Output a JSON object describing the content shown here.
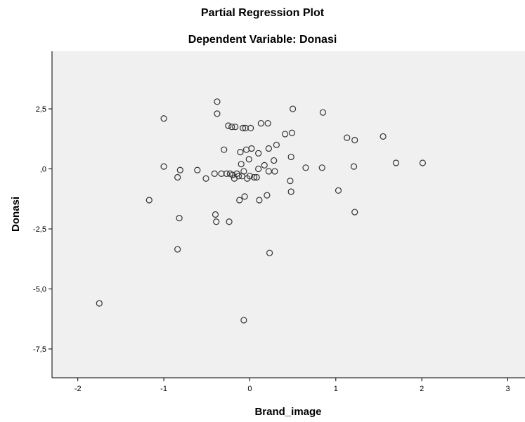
{
  "chart_data": {
    "type": "scatter",
    "title": "Partial Regression Plot",
    "subtitle": "Dependent Variable: Donasi",
    "xlabel": "Brand_image",
    "ylabel": "Donasi",
    "xlim": [
      -2.3,
      3.2
    ],
    "ylim": [
      -8.7,
      4.9
    ],
    "xticks": [
      -2,
      -1,
      0,
      1,
      2,
      3
    ],
    "yticks": [
      2.5,
      0,
      -2.5,
      -5.0,
      -7.5
    ],
    "xtick_labels": [
      "-2",
      "-1",
      "0",
      "1",
      "2",
      "3"
    ],
    "ytick_labels": [
      "2,5",
      ",0",
      "-2,5",
      "-5,0",
      "-7,5"
    ],
    "grid": false,
    "colors": {
      "plot_background": "#f0f0f0",
      "marker_edge": "#333333"
    },
    "x": [
      -1.75,
      -1.17,
      -1.0,
      -1.0,
      -0.84,
      -0.84,
      -0.82,
      -0.81,
      -0.61,
      -0.51,
      -0.41,
      -0.4,
      -0.39,
      -0.38,
      -0.38,
      -0.33,
      -0.3,
      -0.27,
      -0.25,
      -0.24,
      -0.23,
      -0.21,
      -0.2,
      -0.18,
      -0.17,
      -0.15,
      -0.13,
      -0.12,
      -0.11,
      -0.1,
      -0.09,
      -0.08,
      -0.07,
      -0.07,
      -0.06,
      -0.05,
      -0.04,
      -0.03,
      -0.01,
      0.0,
      0.01,
      0.02,
      0.05,
      0.08,
      0.1,
      0.1,
      0.11,
      0.13,
      0.17,
      0.2,
      0.21,
      0.22,
      0.22,
      0.23,
      0.28,
      0.29,
      0.31,
      0.41,
      0.47,
      0.48,
      0.48,
      0.49,
      0.5,
      0.65,
      0.84,
      0.85,
      1.03,
      1.13,
      1.21,
      1.22,
      1.22,
      1.55,
      1.7,
      2.01
    ],
    "y": [
      -5.6,
      -1.3,
      2.1,
      0.1,
      -0.35,
      -3.35,
      -2.05,
      -0.05,
      -0.05,
      -0.4,
      -0.2,
      -1.9,
      -2.2,
      2.3,
      2.8,
      -0.2,
      0.8,
      -0.2,
      1.8,
      -2.2,
      -0.2,
      1.75,
      -0.25,
      -0.4,
      1.75,
      -0.2,
      -0.3,
      -1.3,
      0.7,
      0.2,
      -0.3,
      1.7,
      -0.1,
      -6.3,
      -1.15,
      1.7,
      0.8,
      -0.4,
      0.4,
      -0.3,
      1.7,
      0.85,
      -0.35,
      -0.35,
      0.0,
      0.65,
      -1.3,
      1.9,
      0.15,
      -1.1,
      1.9,
      -0.1,
      0.85,
      -3.5,
      0.35,
      -0.1,
      1.0,
      1.45,
      -0.5,
      0.5,
      -0.95,
      1.5,
      2.5,
      0.05,
      0.05,
      2.35,
      -0.9,
      1.3,
      0.1,
      1.2,
      -1.8,
      1.35,
      0.25,
      0.25
    ]
  }
}
